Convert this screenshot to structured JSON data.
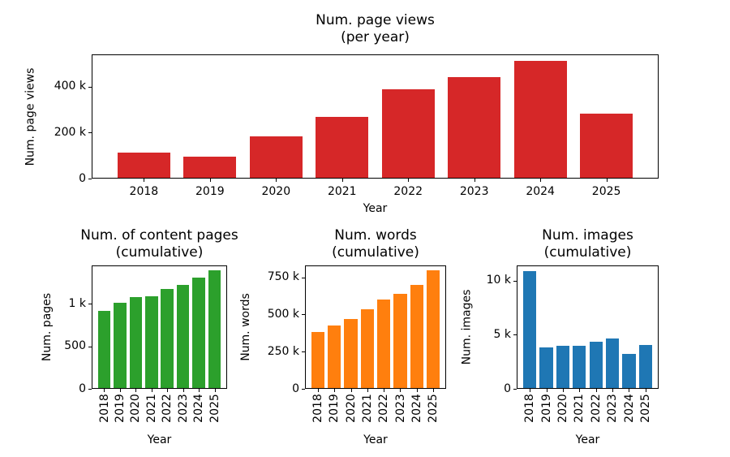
{
  "figure": {
    "background": "#ffffff"
  },
  "chart_data": [
    {
      "id": "page-views-per-year",
      "type": "bar",
      "title": "Num. page views",
      "subtitle": "(per year)",
      "xlabel": "Year",
      "ylabel": "Num. page views",
      "categories": [
        "2018",
        "2019",
        "2020",
        "2021",
        "2022",
        "2023",
        "2024",
        "2025"
      ],
      "values": [
        113000,
        96000,
        185000,
        268000,
        388000,
        440000,
        512000,
        284000
      ],
      "bar_color": "#d62728",
      "ylim": [
        0,
        540000
      ],
      "yticks": [
        {
          "value": 0,
          "label": "0"
        },
        {
          "value": 200000,
          "label": "200 k"
        },
        {
          "value": 400000,
          "label": "400 k"
        }
      ],
      "xtick_rotation": 0,
      "grid": false
    },
    {
      "id": "content-pages-cumulative",
      "type": "bar",
      "title": "Num. of content pages",
      "subtitle": "(cumulative)",
      "xlabel": "Year",
      "ylabel": "Num. pages",
      "categories": [
        "2018",
        "2019",
        "2020",
        "2021",
        "2022",
        "2023",
        "2024",
        "2025"
      ],
      "values": [
        920,
        1010,
        1080,
        1090,
        1170,
        1220,
        1310,
        1390
      ],
      "bar_color": "#2ca02c",
      "ylim": [
        0,
        1450
      ],
      "yticks": [
        {
          "value": 0,
          "label": "0"
        },
        {
          "value": 500,
          "label": "500"
        },
        {
          "value": 1000,
          "label": "1 k"
        }
      ],
      "xtick_rotation": 90,
      "grid": false
    },
    {
      "id": "words-cumulative",
      "type": "bar",
      "title": "Num. words",
      "subtitle": "(cumulative)",
      "xlabel": "Year",
      "ylabel": "Num. words",
      "categories": [
        "2018",
        "2019",
        "2020",
        "2021",
        "2022",
        "2023",
        "2024",
        "2025"
      ],
      "values": [
        383000,
        428000,
        468000,
        537000,
        600000,
        640000,
        700000,
        795000
      ],
      "bar_color": "#ff7f0e",
      "ylim": [
        0,
        830000
      ],
      "yticks": [
        {
          "value": 0,
          "label": "0"
        },
        {
          "value": 250000,
          "label": "250 k"
        },
        {
          "value": 500000,
          "label": "500 k"
        },
        {
          "value": 750000,
          "label": "750 k"
        }
      ],
      "xtick_rotation": 90,
      "grid": false
    },
    {
      "id": "images-cumulative",
      "type": "bar",
      "title": "Num. images",
      "subtitle": "(cumulative)",
      "xlabel": "Year",
      "ylabel": "Num. images",
      "categories": [
        "2018",
        "2019",
        "2020",
        "2021",
        "2022",
        "2023",
        "2024",
        "2025"
      ],
      "values": [
        10900,
        3800,
        4000,
        3980,
        4330,
        4630,
        3250,
        4050
      ],
      "bar_color": "#1f77b4",
      "ylim": [
        0,
        11400
      ],
      "yticks": [
        {
          "value": 0,
          "label": "0"
        },
        {
          "value": 5000,
          "label": "5 k"
        },
        {
          "value": 10000,
          "label": "10 k"
        }
      ],
      "xtick_rotation": 90,
      "grid": false
    }
  ]
}
